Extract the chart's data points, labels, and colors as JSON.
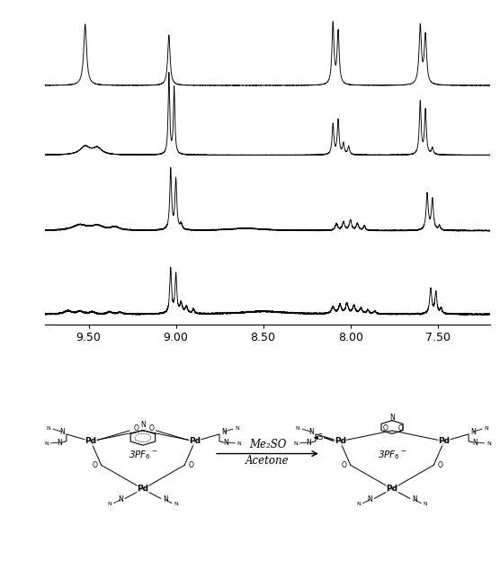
{
  "nmr_xlim": [
    9.75,
    7.2
  ],
  "x_ticks": [
    9.5,
    9.0,
    8.5,
    8.0,
    7.5
  ],
  "x_tick_labels": [
    "9.50",
    "9.00",
    "8.50",
    "8.00",
    "7.50"
  ],
  "background_color": "#ffffff",
  "line_color": "#000000",
  "figure_width": 5.56,
  "figure_height": 6.54,
  "arrow_label_top": "Me₂SO",
  "arrow_label_bottom": "Acetone"
}
